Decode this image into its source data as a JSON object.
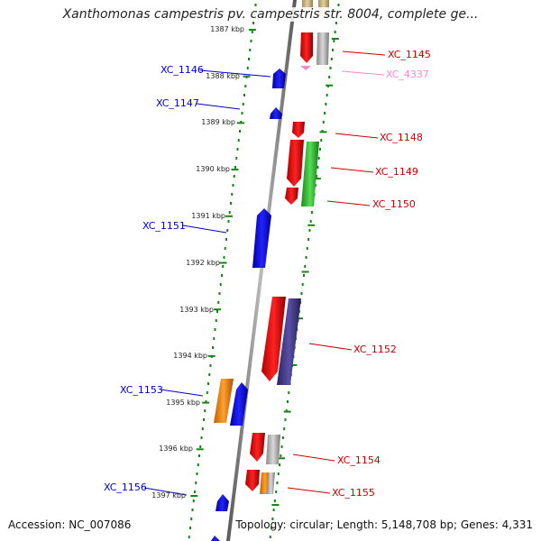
{
  "title": "Xanthomonas campestris pv. campestris str. 8004, complete ge...",
  "accession": "Accession: NC_007086",
  "summary": "Topology: circular; Length: 5,148,708 bp; Genes: 4,331",
  "kbp_labels": [
    "1387 kbp",
    "1388 kbp",
    "1389 kbp",
    "1390 kbp",
    "1391 kbp",
    "1392 kbp",
    "1393 kbp",
    "1394 kbp",
    "1395 kbp",
    "1396 kbp",
    "1397 kbp"
  ],
  "genes_left": [
    "XC_1146",
    "XC_1147",
    "XC_1151",
    "XC_1153",
    "XC_1156"
  ],
  "genes_right": [
    "XC_1145",
    "XC_4337",
    "XC_1148",
    "XC_1149",
    "XC_1150",
    "XC_1152",
    "XC_1154",
    "XC_1155"
  ],
  "colors": {
    "forward": "#ff0000",
    "reverse": "#0000ff",
    "pseudo": "#ff88cc",
    "grey": "#b4b4b4",
    "green": "#33cc33",
    "purple": "#4a3f8f",
    "orange": "#ff8c00",
    "tick": "#118811",
    "backbone": "#888888"
  }
}
